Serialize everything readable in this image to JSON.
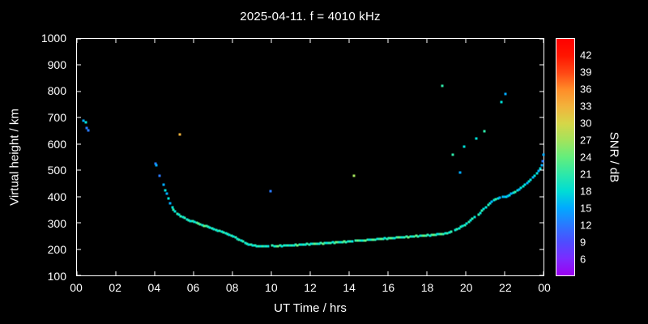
{
  "title": "2025-04-11. f = 4010 kHz",
  "chart_data": {
    "type": "scatter",
    "title": "2025-04-11. f = 4010 kHz",
    "xlabel": "UT Time / hrs",
    "ylabel": "Virtual height / km",
    "colorbar_label": "SNR / dB",
    "xlim": [
      0,
      24
    ],
    "ylim": [
      100,
      1000
    ],
    "grid": false,
    "background": "#000000",
    "axis_color": "#ffffff",
    "x_ticks": [
      {
        "v": 0,
        "label": "00"
      },
      {
        "v": 2,
        "label": "02"
      },
      {
        "v": 4,
        "label": "04"
      },
      {
        "v": 6,
        "label": "06"
      },
      {
        "v": 8,
        "label": "08"
      },
      {
        "v": 10,
        "label": "10"
      },
      {
        "v": 12,
        "label": "12"
      },
      {
        "v": 14,
        "label": "14"
      },
      {
        "v": 16,
        "label": "16"
      },
      {
        "v": 18,
        "label": "18"
      },
      {
        "v": 20,
        "label": "20"
      },
      {
        "v": 22,
        "label": "22"
      },
      {
        "v": 24,
        "label": "00"
      }
    ],
    "y_ticks": [
      100,
      200,
      300,
      400,
      500,
      600,
      700,
      800,
      900,
      1000
    ],
    "colorbar": {
      "range": [
        3,
        45
      ],
      "ticks": [
        6,
        9,
        12,
        15,
        18,
        21,
        24,
        27,
        30,
        33,
        36,
        39,
        42
      ],
      "stops": [
        {
          "v": 3,
          "c": "#9b00f0"
        },
        {
          "v": 6,
          "c": "#7b2bff"
        },
        {
          "v": 9,
          "c": "#4d4dff"
        },
        {
          "v": 12,
          "c": "#2979ff"
        },
        {
          "v": 15,
          "c": "#00aaff"
        },
        {
          "v": 18,
          "c": "#00ddd4"
        },
        {
          "v": 21,
          "c": "#2ee8a8"
        },
        {
          "v": 24,
          "c": "#63ee7c"
        },
        {
          "v": 27,
          "c": "#a3e35c"
        },
        {
          "v": 30,
          "c": "#d6d648"
        },
        {
          "v": 33,
          "c": "#f2b33c"
        },
        {
          "v": 36,
          "c": "#ff8c28"
        },
        {
          "v": 39,
          "c": "#ff4714"
        },
        {
          "v": 42,
          "c": "#ff1500"
        },
        {
          "v": 45,
          "c": "#ff0000"
        }
      ]
    },
    "points": [
      [
        0.35,
        690,
        15
      ],
      [
        0.45,
        682,
        18
      ],
      [
        0.5,
        662,
        12
      ],
      [
        0.58,
        652,
        12
      ],
      [
        4.05,
        525,
        12
      ],
      [
        4.1,
        518,
        15
      ],
      [
        4.25,
        480,
        12
      ],
      [
        4.45,
        445,
        15
      ],
      [
        4.55,
        425,
        18
      ],
      [
        4.62,
        410,
        15
      ],
      [
        4.7,
        392,
        18
      ],
      [
        4.8,
        373,
        15
      ],
      [
        4.9,
        358,
        18
      ],
      [
        4.97,
        350,
        21
      ],
      [
        5.05,
        342,
        18
      ],
      [
        5.15,
        335,
        21
      ],
      [
        5.25,
        330,
        18
      ],
      [
        5.3,
        635,
        33
      ],
      [
        5.35,
        326,
        21
      ],
      [
        5.45,
        322,
        18
      ],
      [
        5.55,
        318,
        21
      ],
      [
        5.65,
        314,
        18
      ],
      [
        5.75,
        311,
        21
      ],
      [
        5.85,
        308,
        18
      ],
      [
        5.95,
        306,
        21
      ],
      [
        6.05,
        302,
        18
      ],
      [
        6.15,
        300,
        21
      ],
      [
        6.25,
        296,
        24
      ],
      [
        6.35,
        294,
        21
      ],
      [
        6.45,
        291,
        18
      ],
      [
        6.55,
        289,
        24
      ],
      [
        6.65,
        287,
        21
      ],
      [
        6.75,
        284,
        21
      ],
      [
        6.85,
        281,
        18
      ],
      [
        6.95,
        279,
        21
      ],
      [
        7.05,
        276,
        18
      ],
      [
        7.15,
        274,
        21
      ],
      [
        7.25,
        271,
        18
      ],
      [
        7.35,
        268,
        21
      ],
      [
        7.45,
        265,
        18
      ],
      [
        7.55,
        263,
        21
      ],
      [
        7.65,
        260,
        18
      ],
      [
        7.75,
        258,
        21
      ],
      [
        7.85,
        255,
        18
      ],
      [
        7.95,
        252,
        21
      ],
      [
        8.05,
        248,
        18
      ],
      [
        8.15,
        244,
        21
      ],
      [
        8.25,
        240,
        18
      ],
      [
        8.35,
        236,
        21
      ],
      [
        8.45,
        232,
        18
      ],
      [
        8.55,
        228,
        21
      ],
      [
        8.65,
        224,
        18
      ],
      [
        8.75,
        221,
        21
      ],
      [
        8.85,
        218,
        18
      ],
      [
        8.95,
        216,
        21
      ],
      [
        9.05,
        214,
        18
      ],
      [
        9.15,
        213,
        21
      ],
      [
        9.25,
        212,
        18
      ],
      [
        9.35,
        211,
        21
      ],
      [
        9.45,
        210,
        18
      ],
      [
        9.55,
        210,
        21
      ],
      [
        9.65,
        211,
        18
      ],
      [
        9.75,
        212,
        21
      ],
      [
        9.85,
        212,
        18
      ],
      [
        9.95,
        420,
        12
      ],
      [
        10.05,
        213,
        21
      ],
      [
        10.15,
        212,
        18
      ],
      [
        10.25,
        211,
        21
      ],
      [
        10.35,
        212,
        24
      ],
      [
        10.45,
        213,
        21
      ],
      [
        10.55,
        212,
        18
      ],
      [
        10.65,
        214,
        21
      ],
      [
        10.75,
        213,
        18
      ],
      [
        10.85,
        215,
        21
      ],
      [
        10.95,
        214,
        18
      ],
      [
        11.05,
        215,
        21
      ],
      [
        11.15,
        214,
        18
      ],
      [
        11.25,
        216,
        21
      ],
      [
        11.35,
        215,
        24
      ],
      [
        11.45,
        217,
        21
      ],
      [
        11.55,
        216,
        18
      ],
      [
        11.65,
        218,
        21
      ],
      [
        11.75,
        217,
        18
      ],
      [
        11.85,
        219,
        21
      ],
      [
        11.95,
        218,
        21
      ],
      [
        12.05,
        219,
        18
      ],
      [
        12.15,
        220,
        21
      ],
      [
        12.25,
        219,
        24
      ],
      [
        12.35,
        221,
        21
      ],
      [
        12.45,
        220,
        18
      ],
      [
        12.55,
        222,
        21
      ],
      [
        12.65,
        221,
        24
      ],
      [
        12.75,
        223,
        21
      ],
      [
        12.85,
        222,
        18
      ],
      [
        12.95,
        224,
        21
      ],
      [
        13.05,
        223,
        21
      ],
      [
        13.15,
        225,
        18
      ],
      [
        13.25,
        224,
        21
      ],
      [
        13.35,
        226,
        24
      ],
      [
        13.45,
        225,
        21
      ],
      [
        13.55,
        227,
        18
      ],
      [
        13.65,
        226,
        21
      ],
      [
        13.75,
        228,
        24
      ],
      [
        13.85,
        227,
        21
      ],
      [
        13.95,
        229,
        18
      ],
      [
        14.05,
        230,
        21
      ],
      [
        14.15,
        229,
        18
      ],
      [
        14.25,
        480,
        27
      ],
      [
        14.35,
        231,
        21
      ],
      [
        14.45,
        232,
        24
      ],
      [
        14.55,
        231,
        21
      ],
      [
        14.65,
        233,
        18
      ],
      [
        14.75,
        234,
        21
      ],
      [
        14.85,
        233,
        24
      ],
      [
        14.95,
        235,
        21
      ],
      [
        15.05,
        236,
        18
      ],
      [
        15.15,
        235,
        21
      ],
      [
        15.25,
        237,
        24
      ],
      [
        15.35,
        236,
        21
      ],
      [
        15.45,
        238,
        18
      ],
      [
        15.55,
        239,
        21
      ],
      [
        15.65,
        238,
        24
      ],
      [
        15.75,
        240,
        21
      ],
      [
        15.85,
        241,
        18
      ],
      [
        15.95,
        240,
        21
      ],
      [
        16.05,
        242,
        21
      ],
      [
        16.15,
        241,
        24
      ],
      [
        16.25,
        243,
        21
      ],
      [
        16.35,
        242,
        18
      ],
      [
        16.45,
        244,
        21
      ],
      [
        16.55,
        245,
        24
      ],
      [
        16.65,
        244,
        21
      ],
      [
        16.75,
        246,
        18
      ],
      [
        16.85,
        245,
        21
      ],
      [
        16.95,
        247,
        21
      ],
      [
        17.05,
        246,
        24
      ],
      [
        17.15,
        248,
        21
      ],
      [
        17.25,
        247,
        18
      ],
      [
        17.35,
        249,
        21
      ],
      [
        17.45,
        250,
        24
      ],
      [
        17.55,
        249,
        21
      ],
      [
        17.65,
        251,
        18
      ],
      [
        17.75,
        250,
        21
      ],
      [
        17.85,
        252,
        24
      ],
      [
        17.95,
        251,
        21
      ],
      [
        18.05,
        253,
        21
      ],
      [
        18.15,
        252,
        18
      ],
      [
        18.25,
        254,
        21
      ],
      [
        18.35,
        255,
        24
      ],
      [
        18.45,
        254,
        21
      ],
      [
        18.55,
        256,
        18
      ],
      [
        18.65,
        257,
        21
      ],
      [
        18.75,
        256,
        24
      ],
      [
        18.8,
        820,
        21
      ],
      [
        18.85,
        258,
        21
      ],
      [
        18.95,
        259,
        18
      ],
      [
        19.05,
        261,
        21
      ],
      [
        19.15,
        264,
        18
      ],
      [
        19.25,
        267,
        21
      ],
      [
        19.35,
        560,
        21
      ],
      [
        19.45,
        272,
        18
      ],
      [
        19.55,
        276,
        21
      ],
      [
        19.65,
        280,
        18
      ],
      [
        19.7,
        490,
        15
      ],
      [
        19.75,
        284,
        21
      ],
      [
        19.85,
        288,
        18
      ],
      [
        19.9,
        590,
        18
      ],
      [
        19.95,
        292,
        21
      ],
      [
        20.05,
        297,
        18
      ],
      [
        20.15,
        303,
        21
      ],
      [
        20.25,
        309,
        18
      ],
      [
        20.35,
        316,
        21
      ],
      [
        20.45,
        323,
        18
      ],
      [
        20.55,
        620,
        18
      ],
      [
        20.65,
        331,
        21
      ],
      [
        20.75,
        338,
        18
      ],
      [
        20.85,
        346,
        21
      ],
      [
        20.9,
        352,
        18
      ],
      [
        20.95,
        650,
        21
      ],
      [
        21.05,
        360,
        18
      ],
      [
        21.15,
        368,
        21
      ],
      [
        21.25,
        375,
        18
      ],
      [
        21.35,
        381,
        15
      ],
      [
        21.45,
        386,
        18
      ],
      [
        21.55,
        390,
        21
      ],
      [
        21.65,
        394,
        18
      ],
      [
        21.75,
        397,
        15
      ],
      [
        21.85,
        760,
        18
      ],
      [
        21.9,
        399,
        18
      ],
      [
        21.95,
        400,
        15
      ],
      [
        22.05,
        790,
        15
      ],
      [
        22.1,
        398,
        18
      ],
      [
        22.15,
        402,
        15
      ],
      [
        22.25,
        406,
        18
      ],
      [
        22.35,
        410,
        15
      ],
      [
        22.45,
        414,
        18
      ],
      [
        22.55,
        418,
        21
      ],
      [
        22.65,
        423,
        18
      ],
      [
        22.75,
        428,
        15
      ],
      [
        22.85,
        433,
        18
      ],
      [
        22.95,
        438,
        18
      ],
      [
        23.05,
        444,
        18
      ],
      [
        23.15,
        450,
        15
      ],
      [
        23.25,
        457,
        18
      ],
      [
        23.35,
        464,
        18
      ],
      [
        23.45,
        472,
        15
      ],
      [
        23.55,
        480,
        18
      ],
      [
        23.65,
        489,
        18
      ],
      [
        23.75,
        498,
        15
      ],
      [
        23.85,
        508,
        18
      ],
      [
        23.9,
        520,
        15
      ],
      [
        23.95,
        535,
        12
      ],
      [
        23.98,
        560,
        15
      ]
    ]
  }
}
